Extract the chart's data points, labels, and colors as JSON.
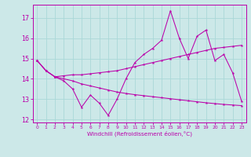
{
  "xlabel": "Windchill (Refroidissement éolien,°C)",
  "bg_color": "#cce8e8",
  "line_color": "#bb00aa",
  "grid_color": "#aad8d8",
  "xlim": [
    -0.5,
    23.5
  ],
  "ylim": [
    11.85,
    17.65
  ],
  "xticks": [
    0,
    1,
    2,
    3,
    4,
    5,
    6,
    7,
    8,
    9,
    10,
    11,
    12,
    13,
    14,
    15,
    16,
    17,
    18,
    19,
    20,
    21,
    22,
    23
  ],
  "yticks": [
    12,
    13,
    14,
    15,
    16,
    17
  ],
  "line1_x": [
    0,
    1,
    2,
    3,
    4,
    5,
    6,
    7,
    8,
    9,
    10,
    11,
    12,
    13,
    14,
    15,
    16,
    17,
    18,
    19,
    20,
    21,
    22,
    23
  ],
  "line1_y": [
    14.9,
    14.4,
    14.1,
    13.9,
    13.5,
    12.6,
    13.2,
    12.8,
    12.2,
    13.0,
    14.0,
    14.8,
    15.2,
    15.5,
    15.9,
    17.35,
    16.0,
    15.0,
    16.1,
    16.4,
    14.9,
    15.2,
    14.3,
    12.9
  ],
  "line2_x": [
    0,
    1,
    2,
    3,
    4,
    5,
    6,
    7,
    8,
    9,
    10,
    11,
    12,
    13,
    14,
    15,
    16,
    17,
    18,
    19,
    20,
    21,
    22,
    23
  ],
  "line2_y": [
    14.9,
    14.4,
    14.1,
    14.15,
    14.2,
    14.2,
    14.25,
    14.3,
    14.35,
    14.4,
    14.5,
    14.6,
    14.7,
    14.8,
    14.9,
    15.0,
    15.1,
    15.2,
    15.3,
    15.4,
    15.5,
    15.55,
    15.6,
    15.65
  ],
  "line3_x": [
    0,
    1,
    2,
    3,
    4,
    5,
    6,
    7,
    8,
    9,
    10,
    11,
    12,
    13,
    14,
    15,
    16,
    17,
    18,
    19,
    20,
    21,
    22,
    23
  ],
  "line3_y": [
    14.9,
    14.4,
    14.1,
    14.0,
    13.9,
    13.75,
    13.65,
    13.55,
    13.45,
    13.35,
    13.28,
    13.22,
    13.17,
    13.12,
    13.07,
    13.02,
    12.97,
    12.92,
    12.87,
    12.82,
    12.78,
    12.74,
    12.71,
    12.68
  ]
}
